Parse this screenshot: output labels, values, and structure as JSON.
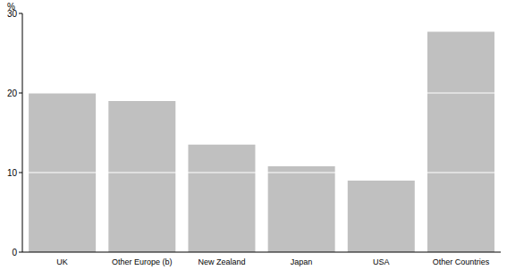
{
  "chart_data": {
    "type": "bar",
    "y_label": "%",
    "categories": [
      "UK",
      "Other Europe (b)",
      "New Zealand",
      "Japan",
      "USA",
      "Other Countries"
    ],
    "values": [
      20.0,
      19.0,
      13.5,
      10.8,
      9.0,
      27.7
    ],
    "color": "#c0c0c0",
    "ylim": [
      0,
      30
    ],
    "yticks": [
      0,
      10,
      20,
      30
    ],
    "grid": true
  }
}
